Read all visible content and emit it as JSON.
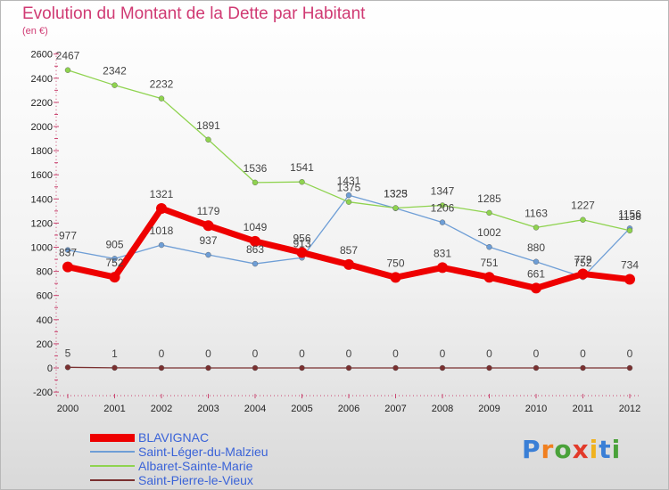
{
  "title": "Evolution du Montant de la Dette par Habitant",
  "subtitle": "(en €)",
  "logo_text": "Proxiti",
  "chart_data": {
    "type": "line",
    "title": "Evolution du Montant de la Dette par Habitant",
    "ylabel": "(en €)",
    "xlabel": "",
    "x": [
      "2000",
      "2001",
      "2002",
      "2003",
      "2004",
      "2005",
      "2006",
      "2007",
      "2008",
      "2009",
      "2010",
      "2011",
      "2012"
    ],
    "ylim": [
      -200,
      2600
    ],
    "yticks": [
      -200,
      0,
      200,
      400,
      600,
      800,
      1000,
      1200,
      1400,
      1600,
      1800,
      2000,
      2200,
      2400,
      2600
    ],
    "grid": false,
    "legend_position": "bottom-left",
    "series": [
      {
        "name": "BLAVIGNAC",
        "color": "#ee0000",
        "values": [
          837,
          752,
          1321,
          1179,
          1049,
          956,
          857,
          750,
          831,
          751,
          661,
          779,
          734
        ]
      },
      {
        "name": "Saint-Léger-du-Malzieu",
        "color": "#6e9ed6",
        "values": [
          977,
          905,
          1018,
          937,
          863,
          913,
          1431,
          1323,
          1206,
          1002,
          880,
          752,
          1156
        ]
      },
      {
        "name": "Albaret-Sainte-Marie",
        "color": "#8fd34f",
        "values": [
          2467,
          2342,
          2232,
          1891,
          1536,
          1541,
          1375,
          1325,
          1347,
          1285,
          1163,
          1227,
          1138
        ]
      },
      {
        "name": "Saint-Pierre-le-Vieux",
        "color": "#7a3030",
        "values": [
          5,
          1,
          0,
          0,
          0,
          0,
          0,
          0,
          0,
          0,
          0,
          0,
          0
        ]
      }
    ]
  }
}
